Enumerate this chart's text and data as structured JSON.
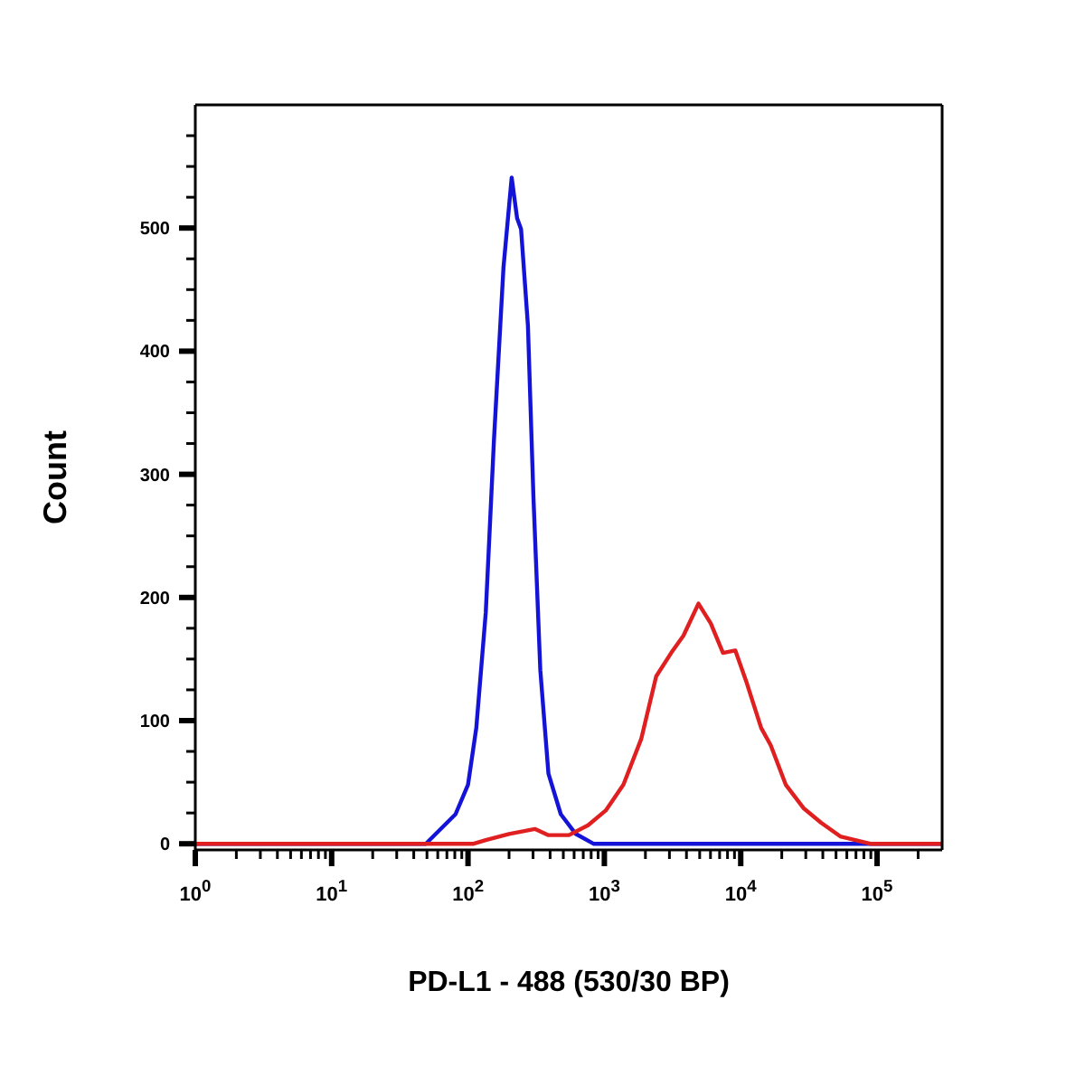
{
  "chart_data": {
    "type": "line",
    "xlabel": "PD-L1 - 488 (530/30 BP)",
    "ylabel": "Count",
    "log": "x",
    "xlim": [
      1,
      300000
    ],
    "ylim": [
      -5,
      600
    ],
    "xticks": [
      {
        "value": 1,
        "label": "10$^{0}$"
      },
      {
        "value": 2,
        "label": null
      },
      {
        "value": 3,
        "label": null
      },
      {
        "value": 4,
        "label": null
      },
      {
        "value": 5,
        "label": null
      },
      {
        "value": 6,
        "label": null
      },
      {
        "value": 7,
        "label": null
      },
      {
        "value": 8,
        "label": null
      },
      {
        "value": 9,
        "label": null
      },
      {
        "value": 10,
        "label": "10$^{1}$"
      },
      {
        "value": 20,
        "label": null
      },
      {
        "value": 30,
        "label": null
      },
      {
        "value": 40,
        "label": null
      },
      {
        "value": 50,
        "label": null
      },
      {
        "value": 60,
        "label": null
      },
      {
        "value": 70,
        "label": null
      },
      {
        "value": 80,
        "label": null
      },
      {
        "value": 90,
        "label": null
      },
      {
        "value": 100,
        "label": "10$^{2}$"
      },
      {
        "value": 200,
        "label": null
      },
      {
        "value": 300,
        "label": null
      },
      {
        "value": 400,
        "label": null
      },
      {
        "value": 500,
        "label": null
      },
      {
        "value": 600,
        "label": null
      },
      {
        "value": 700,
        "label": null
      },
      {
        "value": 800,
        "label": null
      },
      {
        "value": 900,
        "label": null
      },
      {
        "value": 1000,
        "label": "10$^{3}$"
      },
      {
        "value": 2000,
        "label": null
      },
      {
        "value": 3000,
        "label": null
      },
      {
        "value": 4000,
        "label": null
      },
      {
        "value": 5000,
        "label": null
      },
      {
        "value": 6000,
        "label": null
      },
      {
        "value": 7000,
        "label": null
      },
      {
        "value": 8000,
        "label": null
      },
      {
        "value": 9000,
        "label": null
      },
      {
        "value": 10000,
        "label": "10$^{4}$"
      },
      {
        "value": 20000,
        "label": null
      },
      {
        "value": 30000,
        "label": null
      },
      {
        "value": 40000,
        "label": null
      },
      {
        "value": 50000,
        "label": null
      },
      {
        "value": 60000,
        "label": null
      },
      {
        "value": 70000,
        "label": null
      },
      {
        "value": 80000,
        "label": null
      },
      {
        "value": 90000,
        "label": null
      },
      {
        "value": 100000,
        "label": "10$^{5}$"
      },
      {
        "value": 200000,
        "label": null
      }
    ],
    "yticks": [
      0,
      {
        "value": 25,
        "label": null
      },
      {
        "value": 50,
        "label": null
      },
      {
        "value": 75,
        "label": null
      },
      100,
      {
        "value": 125,
        "label": null
      },
      {
        "value": 150,
        "label": null
      },
      {
        "value": 175,
        "label": null
      },
      200,
      {
        "value": 225,
        "label": null
      },
      {
        "value": 250,
        "label": null
      },
      {
        "value": 275,
        "label": null
      },
      300,
      {
        "value": 325,
        "label": null
      },
      {
        "value": 350,
        "label": null
      },
      {
        "value": 375,
        "label": null
      },
      400,
      {
        "value": 425,
        "label": null
      },
      {
        "value": 450,
        "label": null
      },
      {
        "value": 475,
        "label": null
      },
      500,
      {
        "value": 525,
        "label": null
      },
      {
        "value": 550,
        "label": null
      },
      {
        "value": 575,
        "label": null
      }
    ],
    "marker": "none",
    "line_style": "solid",
    "series": [
      {
        "color": "#1414d8",
        "x": [
          1,
          49,
          81,
          100,
          115,
          135,
          155,
          182,
          209,
          229,
          245,
          275,
          302,
          339,
          389,
          479,
          617,
          832,
          300000
        ],
        "values": [
          0,
          0,
          24,
          48,
          94,
          188,
          328,
          468,
          541,
          508,
          499,
          421,
          281,
          141,
          57,
          24,
          8,
          0,
          0
        ]
      },
      {
        "color": "#e02020",
        "x": [
          1,
          110,
          135,
          200,
          309,
          389,
          550,
          759,
          1023,
          1380,
          1862,
          2399,
          3090,
          3802,
          4898,
          6026,
          7413,
          9120,
          10965,
          14125,
          16596,
          21380,
          28840,
          38900,
          53700,
          89125,
          300000
        ],
        "values": [
          0,
          0,
          3,
          8,
          12,
          7,
          7,
          15,
          27,
          48,
          85,
          136,
          155,
          169,
          195,
          179,
          155,
          157,
          132,
          94,
          80,
          48,
          29,
          17,
          6,
          0,
          0
        ]
      }
    ]
  }
}
